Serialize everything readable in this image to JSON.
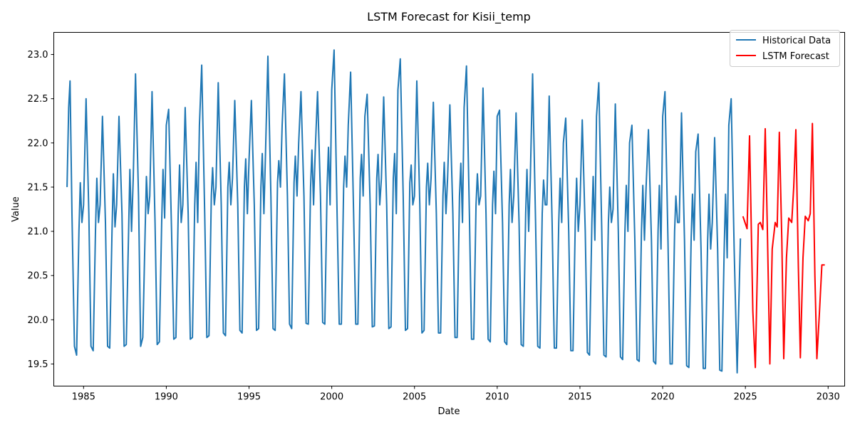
{
  "chart_data": {
    "type": "line",
    "title": "LSTM Forecast for Kisii_temp",
    "xlabel": "Date",
    "ylabel": "Value",
    "xlim": [
      1983.2,
      2031.0
    ],
    "ylim": [
      19.25,
      23.25
    ],
    "xticks": [
      1985,
      1990,
      1995,
      2000,
      2005,
      2010,
      2015,
      2020,
      2025,
      2030
    ],
    "yticks": [
      19.5,
      20.0,
      20.5,
      21.0,
      21.5,
      22.0,
      22.5,
      23.0
    ],
    "ytick_labels": [
      "19.5",
      "20.0",
      "20.5",
      "21.0",
      "21.5",
      "22.0",
      "22.5",
      "23.0"
    ],
    "grid": false,
    "legend_position": "top-right",
    "series": [
      {
        "name": "Historical Data",
        "color": "#1f77b4",
        "x": [
          1984.0,
          1984.1,
          1984.18,
          1984.3,
          1984.45,
          1984.58,
          1984.72,
          1984.8,
          1984.9,
          1985.0,
          1985.15,
          1985.32,
          1985.45,
          1985.58,
          1985.72,
          1985.8,
          1985.9,
          1986.0,
          1986.14,
          1986.32,
          1986.45,
          1986.58,
          1986.72,
          1986.8,
          1986.9,
          1987.0,
          1987.14,
          1987.32,
          1987.45,
          1987.58,
          1987.72,
          1987.8,
          1987.9,
          1988.0,
          1988.14,
          1988.32,
          1988.45,
          1988.58,
          1988.72,
          1988.8,
          1988.9,
          1989.0,
          1989.14,
          1989.32,
          1989.45,
          1989.58,
          1989.72,
          1989.8,
          1989.9,
          1990.0,
          1990.14,
          1990.32,
          1990.45,
          1990.58,
          1990.72,
          1990.8,
          1990.9,
          1991.0,
          1991.14,
          1991.32,
          1991.45,
          1991.58,
          1991.72,
          1991.8,
          1991.9,
          1992.0,
          1992.14,
          1992.32,
          1992.45,
          1992.58,
          1992.72,
          1992.8,
          1992.9,
          1993.0,
          1993.14,
          1993.32,
          1993.45,
          1993.58,
          1993.72,
          1993.8,
          1993.9,
          1994.0,
          1994.14,
          1994.32,
          1994.45,
          1994.58,
          1994.72,
          1994.8,
          1994.9,
          1995.0,
          1995.14,
          1995.32,
          1995.45,
          1995.58,
          1995.72,
          1995.8,
          1995.9,
          1996.0,
          1996.14,
          1996.32,
          1996.45,
          1996.58,
          1996.72,
          1996.8,
          1996.9,
          1997.0,
          1997.14,
          1997.32,
          1997.45,
          1997.58,
          1997.72,
          1997.8,
          1997.9,
          1998.0,
          1998.14,
          1998.32,
          1998.45,
          1998.58,
          1998.72,
          1998.8,
          1998.9,
          1999.0,
          1999.14,
          1999.32,
          1999.45,
          1999.58,
          1999.72,
          1999.8,
          1999.9,
          2000.0,
          2000.14,
          2000.32,
          2000.45,
          2000.58,
          2000.72,
          2000.8,
          2000.9,
          2001.0,
          2001.14,
          2001.32,
          2001.45,
          2001.58,
          2001.72,
          2001.8,
          2001.9,
          2002.0,
          2002.14,
          2002.32,
          2002.45,
          2002.58,
          2002.72,
          2002.8,
          2002.9,
          2003.0,
          2003.14,
          2003.32,
          2003.45,
          2003.58,
          2003.72,
          2003.8,
          2003.9,
          2004.0,
          2004.14,
          2004.32,
          2004.45,
          2004.58,
          2004.72,
          2004.8,
          2004.9,
          2005.0,
          2005.14,
          2005.32,
          2005.45,
          2005.58,
          2005.72,
          2005.8,
          2005.9,
          2006.0,
          2006.14,
          2006.32,
          2006.45,
          2006.58,
          2006.72,
          2006.8,
          2006.9,
          2007.0,
          2007.14,
          2007.32,
          2007.45,
          2007.58,
          2007.72,
          2007.8,
          2007.9,
          2008.0,
          2008.14,
          2008.32,
          2008.45,
          2008.58,
          2008.72,
          2008.8,
          2008.9,
          2009.0,
          2009.14,
          2009.32,
          2009.45,
          2009.58,
          2009.72,
          2009.8,
          2009.9,
          2010.0,
          2010.14,
          2010.32,
          2010.45,
          2010.58,
          2010.72,
          2010.8,
          2010.9,
          2011.0,
          2011.14,
          2011.32,
          2011.45,
          2011.58,
          2011.72,
          2011.8,
          2011.9,
          2012.0,
          2012.14,
          2012.32,
          2012.45,
          2012.58,
          2012.72,
          2012.8,
          2012.9,
          2013.0,
          2013.14,
          2013.32,
          2013.45,
          2013.58,
          2013.72,
          2013.8,
          2013.9,
          2014.0,
          2014.14,
          2014.32,
          2014.45,
          2014.58,
          2014.72,
          2014.8,
          2014.9,
          2015.0,
          2015.14,
          2015.32,
          2015.45,
          2015.58,
          2015.72,
          2015.8,
          2015.9,
          2016.0,
          2016.14,
          2016.32,
          2016.45,
          2016.58,
          2016.72,
          2016.8,
          2016.9,
          2017.0,
          2017.14,
          2017.32,
          2017.45,
          2017.58,
          2017.72,
          2017.8,
          2017.9,
          2018.0,
          2018.14,
          2018.32,
          2018.45,
          2018.58,
          2018.72,
          2018.8,
          2018.9,
          2019.0,
          2019.14,
          2019.32,
          2019.45,
          2019.58,
          2019.72,
          2019.8,
          2019.9,
          2020.0,
          2020.14,
          2020.32,
          2020.45,
          2020.58,
          2020.72,
          2020.8,
          2020.9,
          2021.0,
          2021.14,
          2021.32,
          2021.45,
          2021.58,
          2021.72,
          2021.8,
          2021.9,
          2022.0,
          2022.14,
          2022.32,
          2022.45,
          2022.58,
          2022.72,
          2022.8,
          2022.9,
          2023.0,
          2023.14,
          2023.32,
          2023.45,
          2023.58,
          2023.72,
          2023.8,
          2023.9,
          2024.0,
          2024.14,
          2024.32,
          2024.5,
          2024.7
        ],
        "y": [
          21.5,
          22.4,
          22.7,
          21.2,
          19.7,
          19.6,
          21.0,
          21.55,
          21.1,
          21.3,
          22.5,
          21.2,
          19.7,
          19.65,
          21.0,
          21.6,
          21.1,
          21.3,
          22.3,
          21.1,
          19.7,
          19.68,
          21.0,
          21.65,
          21.05,
          21.3,
          22.3,
          21.2,
          19.7,
          19.72,
          21.0,
          21.7,
          21.0,
          21.6,
          22.78,
          21.4,
          19.7,
          19.8,
          21.0,
          21.62,
          21.2,
          21.4,
          22.58,
          21.1,
          19.72,
          19.75,
          21.1,
          21.7,
          21.15,
          22.2,
          22.38,
          21.0,
          19.78,
          19.8,
          21.2,
          21.75,
          21.1,
          21.3,
          22.4,
          21.2,
          19.78,
          19.8,
          21.3,
          21.78,
          21.1,
          22.2,
          22.88,
          21.2,
          19.8,
          19.82,
          21.4,
          21.72,
          21.3,
          21.5,
          22.68,
          21.3,
          19.85,
          19.82,
          21.5,
          21.78,
          21.3,
          21.6,
          22.48,
          21.3,
          19.88,
          19.85,
          21.5,
          21.82,
          21.2,
          21.8,
          22.48,
          21.3,
          19.88,
          19.9,
          21.5,
          21.88,
          21.2,
          21.9,
          22.98,
          21.4,
          19.9,
          19.88,
          21.55,
          21.8,
          21.5,
          22.2,
          22.78,
          21.4,
          19.95,
          19.9,
          21.55,
          21.85,
          21.4,
          22.0,
          22.58,
          21.4,
          19.96,
          19.95,
          21.5,
          21.92,
          21.3,
          21.9,
          22.58,
          21.4,
          19.97,
          19.95,
          21.5,
          21.95,
          21.3,
          22.6,
          23.05,
          21.2,
          19.95,
          19.95,
          21.5,
          21.85,
          21.5,
          22.2,
          22.8,
          21.2,
          19.95,
          19.95,
          21.6,
          21.87,
          21.4,
          22.3,
          22.55,
          21.3,
          19.92,
          19.93,
          21.6,
          21.87,
          21.3,
          21.6,
          22.52,
          21.3,
          19.9,
          19.92,
          21.6,
          21.88,
          21.2,
          22.6,
          22.95,
          21.4,
          19.88,
          19.9,
          21.55,
          21.75,
          21.3,
          21.4,
          22.7,
          21.3,
          19.85,
          19.88,
          21.5,
          21.77,
          21.3,
          21.6,
          22.46,
          21.2,
          19.85,
          19.85,
          21.4,
          21.78,
          21.2,
          21.6,
          22.43,
          21.2,
          19.8,
          19.8,
          21.4,
          21.77,
          21.1,
          22.4,
          22.87,
          21.2,
          19.78,
          19.78,
          21.3,
          21.65,
          21.3,
          21.4,
          22.62,
          21.2,
          19.78,
          19.75,
          21.3,
          21.68,
          21.2,
          22.3,
          22.37,
          21.1,
          19.75,
          19.72,
          21.3,
          21.7,
          21.1,
          21.4,
          22.34,
          21.1,
          19.72,
          19.7,
          21.2,
          21.7,
          21.0,
          21.6,
          22.78,
          21.1,
          19.7,
          19.68,
          21.2,
          21.58,
          21.3,
          21.3,
          22.53,
          21.1,
          19.68,
          19.68,
          21.1,
          21.6,
          21.1,
          22.0,
          22.28,
          21.0,
          19.65,
          19.65,
          21.1,
          21.6,
          21.0,
          21.3,
          22.26,
          21.0,
          19.63,
          19.6,
          21.1,
          21.62,
          20.9,
          22.3,
          22.68,
          21.0,
          19.6,
          19.58,
          21.1,
          21.5,
          21.1,
          21.25,
          22.44,
          21.0,
          19.58,
          19.55,
          21.0,
          21.52,
          21.0,
          22.0,
          22.2,
          20.9,
          19.55,
          19.53,
          21.0,
          21.52,
          20.9,
          21.5,
          22.15,
          20.9,
          19.53,
          19.5,
          21.0,
          21.52,
          20.8,
          22.3,
          22.58,
          20.9,
          19.5,
          19.5,
          21.0,
          21.4,
          21.1,
          21.1,
          22.34,
          20.9,
          19.48,
          19.46,
          20.9,
          21.42,
          20.9,
          21.9,
          22.1,
          20.8,
          19.45,
          19.45,
          20.9,
          21.42,
          20.8,
          21.1,
          22.06,
          20.8,
          19.43,
          19.42,
          20.8,
          21.42,
          20.7,
          22.2,
          22.5,
          20.8,
          19.4,
          20.92
        ]
      },
      {
        "name": "LSTM Forecast",
        "color": "#ff0000",
        "x": [
          2024.85,
          2025.1,
          2025.25,
          2025.45,
          2025.6,
          2025.78,
          2025.9,
          2026.05,
          2026.2,
          2026.32,
          2026.48,
          2026.62,
          2026.8,
          2026.92,
          2027.05,
          2027.2,
          2027.32,
          2027.48,
          2027.62,
          2027.8,
          2027.92,
          2028.05,
          2028.2,
          2028.32,
          2028.48,
          2028.62,
          2028.8,
          2028.92,
          2029.05,
          2029.2,
          2029.32,
          2029.48,
          2029.62,
          2029.8
        ],
        "y": [
          21.17,
          21.03,
          22.08,
          20.1,
          19.46,
          21.08,
          21.1,
          21.02,
          22.16,
          21.1,
          19.5,
          20.8,
          21.1,
          21.05,
          22.12,
          20.9,
          19.56,
          20.7,
          21.15,
          21.1,
          21.5,
          22.15,
          20.6,
          19.57,
          20.7,
          21.17,
          21.12,
          21.2,
          22.22,
          20.5,
          19.56,
          20.1,
          20.62,
          20.62
        ]
      }
    ]
  }
}
